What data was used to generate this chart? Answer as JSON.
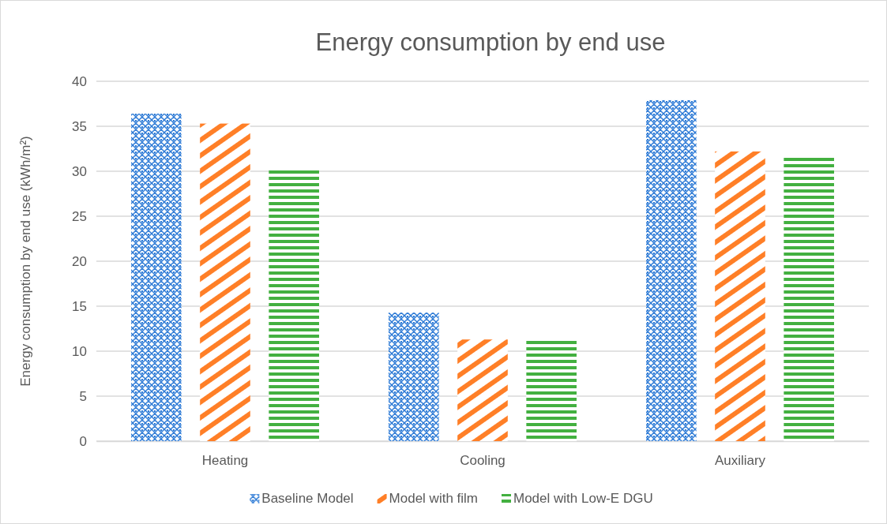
{
  "chart_data": {
    "type": "bar",
    "title": "Energy consumption by end use",
    "ylabel": "Energy consumption by end use (kWh/m²)",
    "categories": [
      "Heating",
      "Cooling",
      "Auxiliary"
    ],
    "series": [
      {
        "name": "Baseline Model",
        "color": "#2e7bd6",
        "values": [
          36.4,
          14.3,
          37.9
        ]
      },
      {
        "name": "Model with film",
        "color": "#ff7f27",
        "values": [
          35.3,
          11.3,
          32.2
        ]
      },
      {
        "name": "Model with Low-E DGU",
        "color": "#43b040",
        "values": [
          30.1,
          11.2,
          31.6
        ]
      }
    ],
    "ylim": [
      0,
      40
    ],
    "yticks": [
      0,
      5,
      10,
      15,
      20,
      25,
      30,
      35,
      40
    ],
    "grid": "y",
    "legend": "bottom"
  }
}
